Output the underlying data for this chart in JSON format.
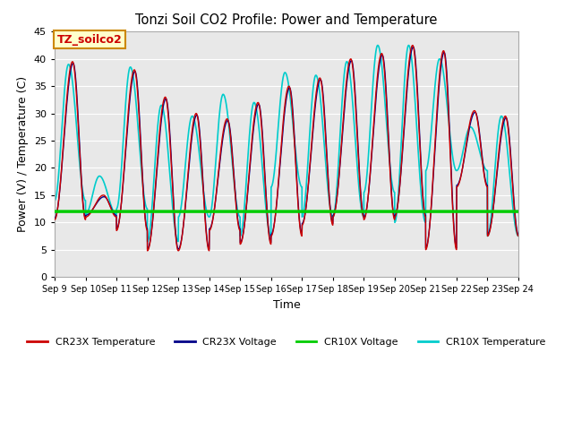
{
  "title": "Tonzi Soil CO2 Profile: Power and Temperature",
  "xlabel": "Time",
  "ylabel": "Power (V) / Temperature (C)",
  "ylim": [
    0,
    45
  ],
  "yticks": [
    0,
    5,
    10,
    15,
    20,
    25,
    30,
    35,
    40,
    45
  ],
  "xtick_labels": [
    "Sep 9",
    "Sep 10",
    "Sep 11",
    "Sep 12",
    "Sep 13",
    "Sep 14",
    "Sep 15",
    "Sep 16",
    "Sep 17",
    "Sep 18",
    "Sep 19",
    "Sep 20",
    "Sep 21",
    "Sep 22",
    "Sep 23",
    "Sep 24"
  ],
  "annotation_box": "TZ_soilco2",
  "annotation_box_facecolor": "#ffffcc",
  "annotation_box_edgecolor": "#cc8800",
  "annotation_text_color": "#cc0000",
  "cr23x_temp_color": "#cc0000",
  "cr23x_volt_color": "#000088",
  "cr10x_volt_color": "#00cc00",
  "cr10x_temp_color": "#00cccc",
  "plot_bg_color": "#e8e8e8",
  "grid_color": "white",
  "cr10x_volt_value": 12.0,
  "total_days": 15,
  "cr23x_peaks": [
    39.5,
    15.0,
    38.0,
    33.0,
    30.0,
    29.0,
    32.0,
    35.0,
    36.5,
    40.0,
    41.0,
    42.5,
    41.5,
    30.5,
    29.5
  ],
  "cr23x_troughs": [
    10.5,
    11.0,
    8.5,
    4.8,
    4.8,
    8.5,
    6.0,
    7.5,
    9.5,
    11.0,
    10.5,
    11.0,
    5.0,
    16.5,
    7.5
  ],
  "cr10x_peaks": [
    39.0,
    18.5,
    38.5,
    31.5,
    29.5,
    33.5,
    32.0,
    37.5,
    37.0,
    39.5,
    42.5,
    42.5,
    40.0,
    27.5,
    29.5
  ],
  "cr10x_troughs": [
    14.0,
    11.5,
    12.5,
    6.5,
    11.0,
    11.0,
    7.5,
    16.5,
    11.0,
    11.0,
    15.5,
    10.0,
    19.5,
    19.5,
    7.5
  ]
}
